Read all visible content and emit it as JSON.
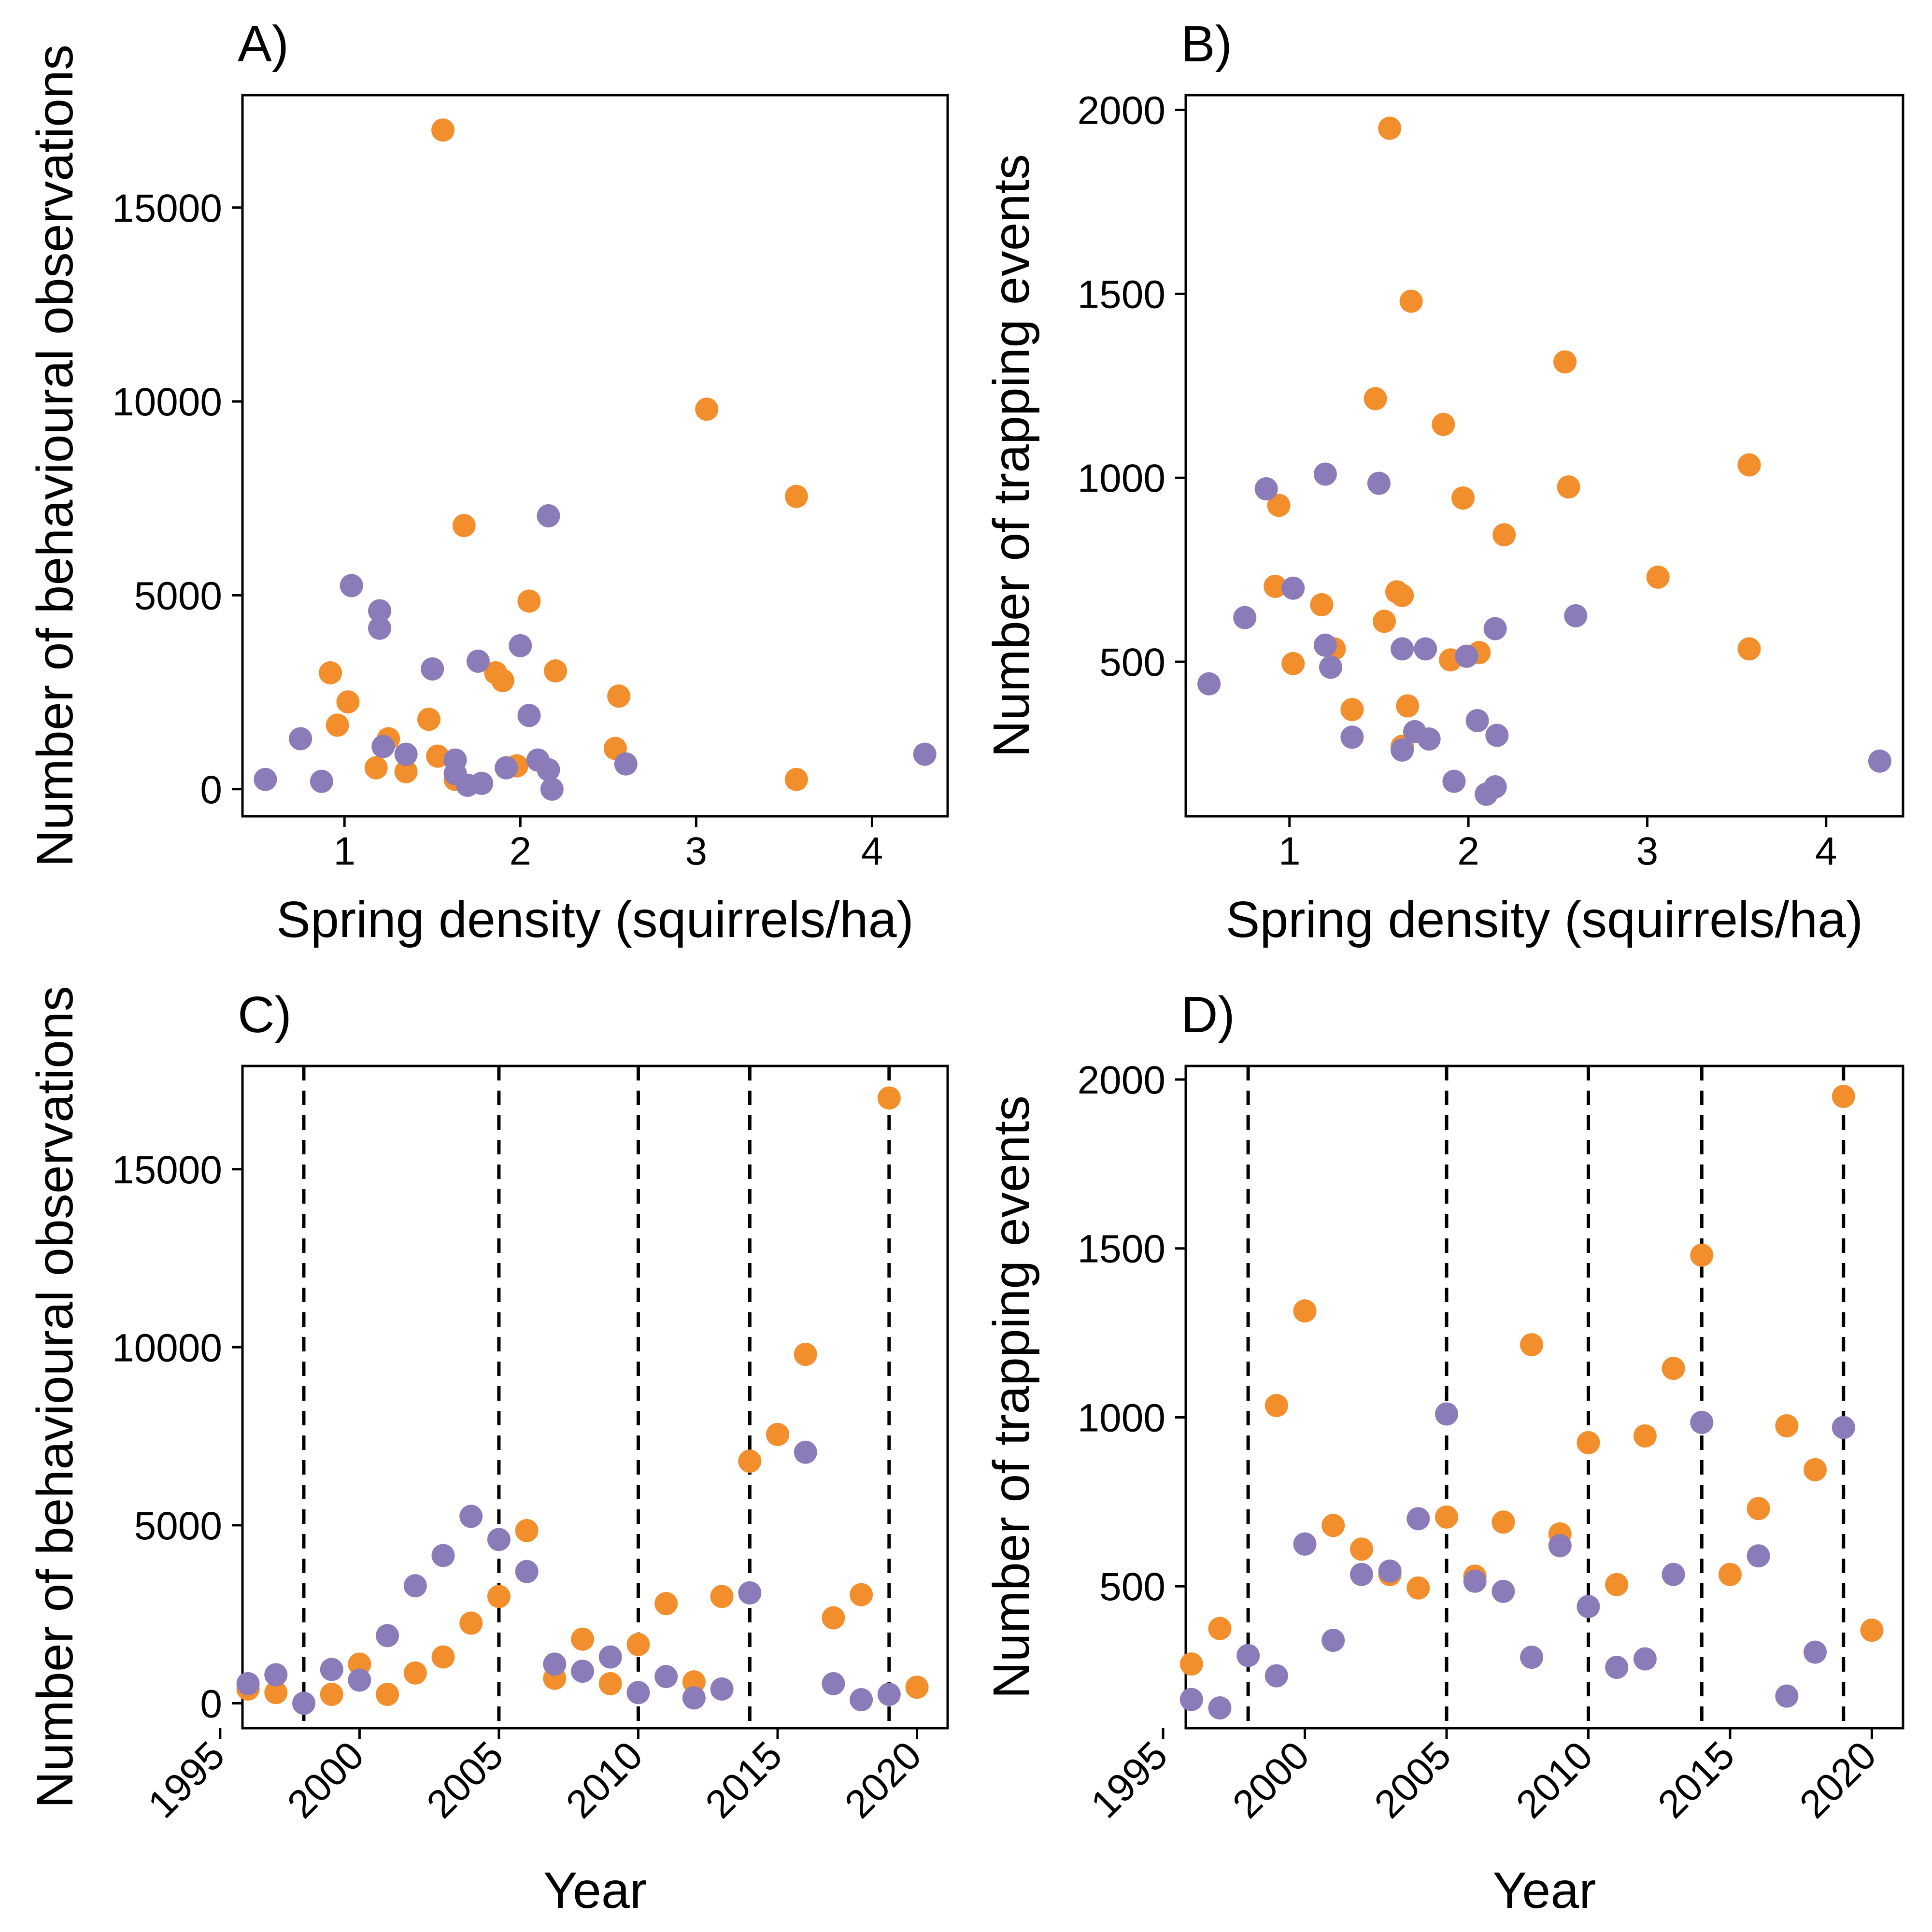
{
  "colors": {
    "orange": "#F28E2B",
    "purple": "#8B7BB8"
  },
  "chart_data": [
    {
      "id": "A",
      "type": "scatter",
      "panel_label": "A)",
      "xlabel": "Spring density (squirrels/ha)",
      "ylabel": "Number of behavioural observations",
      "xlim": [
        0.42,
        4.43
      ],
      "ylim": [
        -700,
        17900
      ],
      "xticks": [
        1,
        2,
        3,
        4
      ],
      "yticks": [
        0,
        5000,
        10000,
        15000
      ],
      "vlines": [],
      "series": [
        {
          "color": "orange",
          "points": [
            [
              0.92,
              3000
            ],
            [
              0.96,
              1650
            ],
            [
              1.02,
              2250
            ],
            [
              1.18,
              550
            ],
            [
              1.25,
              1300
            ],
            [
              1.35,
              450
            ],
            [
              1.48,
              1800
            ],
            [
              1.53,
              850
            ],
            [
              1.56,
              17000
            ],
            [
              1.63,
              250
            ],
            [
              1.68,
              6800
            ],
            [
              1.86,
              3000
            ],
            [
              1.9,
              2800
            ],
            [
              1.98,
              600
            ],
            [
              2.05,
              4850
            ],
            [
              2.2,
              3050
            ],
            [
              2.54,
              1050
            ],
            [
              2.56,
              2400
            ],
            [
              3.06,
              9800
            ],
            [
              3.57,
              7550
            ],
            [
              3.57,
              250
            ]
          ]
        },
        {
          "color": "purple",
          "points": [
            [
              0.55,
              250
            ],
            [
              0.75,
              1300
            ],
            [
              0.87,
              200
            ],
            [
              1.04,
              5250
            ],
            [
              1.2,
              4600
            ],
            [
              1.2,
              4150
            ],
            [
              1.22,
              1100
            ],
            [
              1.35,
              900
            ],
            [
              1.5,
              3100
            ],
            [
              1.63,
              750
            ],
            [
              1.63,
              400
            ],
            [
              1.7,
              100
            ],
            [
              1.76,
              3300
            ],
            [
              1.78,
              150
            ],
            [
              1.92,
              550
            ],
            [
              2.0,
              3700
            ],
            [
              2.05,
              1900
            ],
            [
              2.1,
              750
            ],
            [
              2.16,
              7050
            ],
            [
              2.16,
              500
            ],
            [
              2.18,
              0
            ],
            [
              2.6,
              650
            ],
            [
              4.3,
              900
            ]
          ]
        }
      ]
    },
    {
      "id": "B",
      "type": "scatter",
      "panel_label": "B)",
      "xlabel": "Spring density (squirrels/ha)",
      "ylabel": "Number of trapping events",
      "xlim": [
        0.42,
        4.43
      ],
      "ylim": [
        80,
        2040
      ],
      "xticks": [
        1,
        2,
        3,
        4
      ],
      "yticks": [
        500,
        1000,
        1500,
        2000
      ],
      "vlines": [],
      "series": [
        {
          "color": "orange",
          "points": [
            [
              0.92,
              705
            ],
            [
              0.94,
              925
            ],
            [
              1.02,
              495
            ],
            [
              1.18,
              655
            ],
            [
              1.25,
              535
            ],
            [
              1.35,
              370
            ],
            [
              1.48,
              1215
            ],
            [
              1.53,
              610
            ],
            [
              1.56,
              1950
            ],
            [
              1.6,
              690
            ],
            [
              1.63,
              270
            ],
            [
              1.63,
              680
            ],
            [
              1.66,
              380
            ],
            [
              1.68,
              1480
            ],
            [
              1.86,
              1145
            ],
            [
              1.9,
              505
            ],
            [
              1.97,
              945
            ],
            [
              2.06,
              525
            ],
            [
              2.2,
              845
            ],
            [
              2.54,
              1315
            ],
            [
              2.56,
              975
            ],
            [
              3.06,
              730
            ],
            [
              3.57,
              1035
            ],
            [
              3.57,
              535
            ]
          ]
        },
        {
          "color": "purple",
          "points": [
            [
              0.55,
              440
            ],
            [
              0.75,
              620
            ],
            [
              0.87,
              970
            ],
            [
              1.02,
              700
            ],
            [
              1.2,
              1010
            ],
            [
              1.2,
              545
            ],
            [
              1.23,
              485
            ],
            [
              1.35,
              295
            ],
            [
              1.5,
              985
            ],
            [
              1.63,
              535
            ],
            [
              1.63,
              260
            ],
            [
              1.7,
              310
            ],
            [
              1.76,
              535
            ],
            [
              1.78,
              290
            ],
            [
              1.92,
              175
            ],
            [
              1.99,
              515
            ],
            [
              2.05,
              340
            ],
            [
              2.1,
              140
            ],
            [
              2.15,
              590
            ],
            [
              2.15,
              160
            ],
            [
              2.16,
              300
            ],
            [
              2.6,
              625
            ],
            [
              4.3,
              230
            ]
          ]
        }
      ]
    },
    {
      "id": "C",
      "type": "scatter",
      "panel_label": "C)",
      "xlabel": "Year",
      "ylabel": "Number of behavioural observations",
      "xlim": [
        1995.8,
        2021.1
      ],
      "ylim": [
        -700,
        17900
      ],
      "xticks": [
        1995,
        2000,
        2005,
        2010,
        2015,
        2020
      ],
      "yticks": [
        0,
        5000,
        10000,
        15000
      ],
      "vlines": [
        1998,
        2005,
        2010,
        2014,
        2019
      ],
      "series": [
        {
          "color": "orange",
          "points": [
            [
              1996,
              400
            ],
            [
              1997,
              300
            ],
            [
              1999,
              250
            ],
            [
              2000,
              1100
            ],
            [
              2001,
              250
            ],
            [
              2002,
              850
            ],
            [
              2003,
              1300
            ],
            [
              2004,
              2250
            ],
            [
              2005,
              3000
            ],
            [
              2006,
              4850
            ],
            [
              2007,
              700
            ],
            [
              2008,
              1800
            ],
            [
              2009,
              550
            ],
            [
              2010,
              1650
            ],
            [
              2011,
              2800
            ],
            [
              2012,
              600
            ],
            [
              2013,
              3000
            ],
            [
              2014,
              6800
            ],
            [
              2015,
              7550
            ],
            [
              2016,
              9800
            ],
            [
              2017,
              2400
            ],
            [
              2018,
              3050
            ],
            [
              2019,
              17000
            ],
            [
              2020,
              450
            ]
          ]
        },
        {
          "color": "purple",
          "points": [
            [
              1996,
              550
            ],
            [
              1997,
              800
            ],
            [
              1998,
              0
            ],
            [
              1999,
              950
            ],
            [
              2000,
              650
            ],
            [
              2001,
              1900
            ],
            [
              2002,
              3300
            ],
            [
              2003,
              4150
            ],
            [
              2004,
              5250
            ],
            [
              2005,
              4600
            ],
            [
              2006,
              3700
            ],
            [
              2007,
              1100
            ],
            [
              2008,
              900
            ],
            [
              2009,
              1300
            ],
            [
              2010,
              300
            ],
            [
              2011,
              750
            ],
            [
              2012,
              150
            ],
            [
              2013,
              400
            ],
            [
              2014,
              3100
            ],
            [
              2016,
              7050
            ],
            [
              2017,
              550
            ],
            [
              2018,
              100
            ],
            [
              2019,
              250
            ]
          ]
        }
      ]
    },
    {
      "id": "D",
      "type": "scatter",
      "panel_label": "D)",
      "xlabel": "Year",
      "ylabel": "Number of trapping events",
      "xlim": [
        1995.8,
        2021.1
      ],
      "ylim": [
        80,
        2040
      ],
      "xticks": [
        1995,
        2000,
        2005,
        2010,
        2015,
        2020
      ],
      "yticks": [
        500,
        1000,
        1500,
        2000
      ],
      "vlines": [
        1998,
        2005,
        2010,
        2014,
        2019
      ],
      "series": [
        {
          "color": "orange",
          "points": [
            [
              1996,
              270
            ],
            [
              1997,
              375
            ],
            [
              1999,
              1035
            ],
            [
              2000,
              1315
            ],
            [
              2001,
              680
            ],
            [
              2002,
              610
            ],
            [
              2003,
              535
            ],
            [
              2004,
              495
            ],
            [
              2005,
              705
            ],
            [
              2006,
              530
            ],
            [
              2007,
              690
            ],
            [
              2008,
              1215
            ],
            [
              2009,
              655
            ],
            [
              2010,
              925
            ],
            [
              2011,
              505
            ],
            [
              2012,
              945
            ],
            [
              2013,
              1145
            ],
            [
              2014,
              1480
            ],
            [
              2015,
              535
            ],
            [
              2016,
              730
            ],
            [
              2017,
              975
            ],
            [
              2018,
              845
            ],
            [
              2019,
              1950
            ],
            [
              2020,
              370
            ]
          ]
        },
        {
          "color": "purple",
          "points": [
            [
              1996,
              165
            ],
            [
              1997,
              140
            ],
            [
              1998,
              295
            ],
            [
              1999,
              235
            ],
            [
              2000,
              625
            ],
            [
              2001,
              340
            ],
            [
              2002,
              535
            ],
            [
              2003,
              545
            ],
            [
              2004,
              700
            ],
            [
              2005,
              1010
            ],
            [
              2006,
              515
            ],
            [
              2007,
              485
            ],
            [
              2008,
              290
            ],
            [
              2009,
              620
            ],
            [
              2010,
              440
            ],
            [
              2011,
              260
            ],
            [
              2012,
              285
            ],
            [
              2013,
              535
            ],
            [
              2014,
              985
            ],
            [
              2016,
              590
            ],
            [
              2017,
              175
            ],
            [
              2018,
              305
            ],
            [
              2019,
              970
            ]
          ]
        }
      ]
    }
  ]
}
